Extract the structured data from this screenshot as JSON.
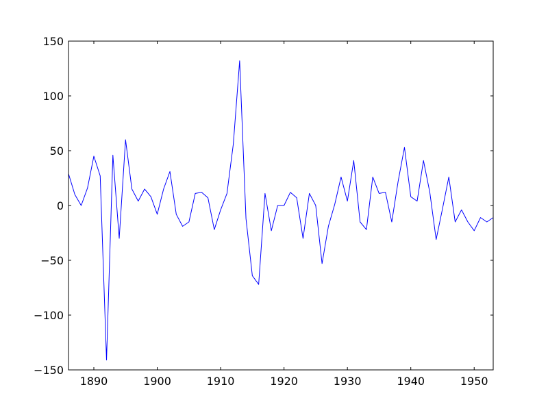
{
  "chart_data": {
    "type": "line",
    "title": "",
    "xlabel": "",
    "ylabel": "",
    "xlim": [
      1886,
      1953
    ],
    "ylim": [
      -150,
      150
    ],
    "x_ticks": [
      1890,
      1900,
      1910,
      1920,
      1930,
      1940,
      1950
    ],
    "y_ticks": [
      -150,
      -100,
      -50,
      0,
      50,
      100,
      150
    ],
    "x_tick_labels": [
      "1890",
      "1900",
      "1910",
      "1920",
      "1930",
      "1940",
      "1950"
    ],
    "y_tick_labels": [
      "−150",
      "−100",
      "−50",
      "0",
      "50",
      "100",
      "150"
    ],
    "grid": false,
    "line_color": "#0000ff",
    "series": [
      {
        "x": [
          1886,
          1887,
          1888,
          1889,
          1890,
          1891,
          1892,
          1893,
          1894,
          1895,
          1896,
          1897,
          1898,
          1899,
          1900,
          1901,
          1902,
          1903,
          1904,
          1905,
          1906,
          1907,
          1908,
          1909,
          1910,
          1911,
          1912,
          1913,
          1914,
          1915,
          1916,
          1917,
          1918,
          1919,
          1920,
          1921,
          1922,
          1923,
          1924,
          1925,
          1926,
          1927,
          1928,
          1929,
          1930,
          1931,
          1932,
          1933,
          1934,
          1935,
          1936,
          1937,
          1938,
          1939,
          1940,
          1941,
          1942,
          1943,
          1944,
          1945,
          1946,
          1947,
          1948,
          1949,
          1950,
          1951,
          1952,
          1953
        ],
        "y": [
          29,
          10,
          0,
          16,
          45,
          27,
          -141,
          46,
          -30,
          60,
          15,
          4,
          15,
          8,
          -8,
          15,
          31,
          -8,
          -19,
          -15,
          11,
          12,
          7,
          -22,
          -4,
          11,
          56,
          132,
          -12,
          -64,
          -72,
          11,
          -23,
          0,
          0,
          12,
          7,
          -30,
          11,
          0,
          -53,
          -19,
          1,
          26,
          4,
          41,
          -15,
          -22,
          26,
          11,
          12,
          -15,
          22,
          53,
          8,
          4,
          41,
          12,
          -31,
          -3,
          26,
          -15,
          -4,
          -15,
          -23,
          -11,
          -15,
          -11
        ]
      }
    ]
  }
}
